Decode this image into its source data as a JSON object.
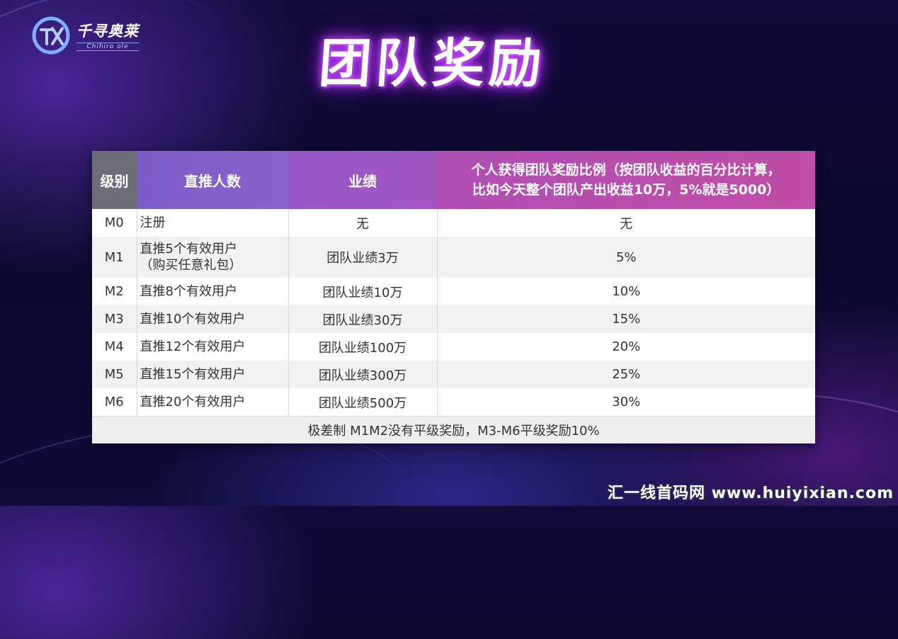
{
  "logo": {
    "name_cn": "千寻奥莱",
    "name_en": "Chihiro ole"
  },
  "title": "团队奖励",
  "table": {
    "headers": {
      "level": "级别",
      "direct": "直推人数",
      "performance": "业绩",
      "ratio_line1": "个人获得团队奖励比例（按团队收益的百分比计算，",
      "ratio_line2": "比如今天整个团队产出收益10万，5%就是5000）"
    },
    "rows": [
      {
        "level": "M0",
        "direct": "注册",
        "direct2": "",
        "performance": "无",
        "ratio": "无"
      },
      {
        "level": "M1",
        "direct": "直推5个有效用户",
        "direct2": "（购买任意礼包）",
        "performance": "团队业绩3万",
        "ratio": "5%"
      },
      {
        "level": "M2",
        "direct": "直推8个有效用户",
        "direct2": "",
        "performance": "团队业绩10万",
        "ratio": "10%"
      },
      {
        "level": "M3",
        "direct": "直推10个有效用户",
        "direct2": "",
        "performance": "团队业绩30万",
        "ratio": "15%"
      },
      {
        "level": "M4",
        "direct": "直推12个有效用户",
        "direct2": "",
        "performance": "团队业绩100万",
        "ratio": "20%"
      },
      {
        "level": "M5",
        "direct": "直推15个有效用户",
        "direct2": "",
        "performance": "团队业绩300万",
        "ratio": "25%"
      },
      {
        "level": "M6",
        "direct": "直推20个有效用户",
        "direct2": "",
        "performance": "团队业绩500万",
        "ratio": "30%"
      }
    ],
    "footnote": "极差制 M1M2没有平级奖励，M3-M6平级奖励10%"
  },
  "watermark": "汇一线首码网 www.huiyixian.com"
}
